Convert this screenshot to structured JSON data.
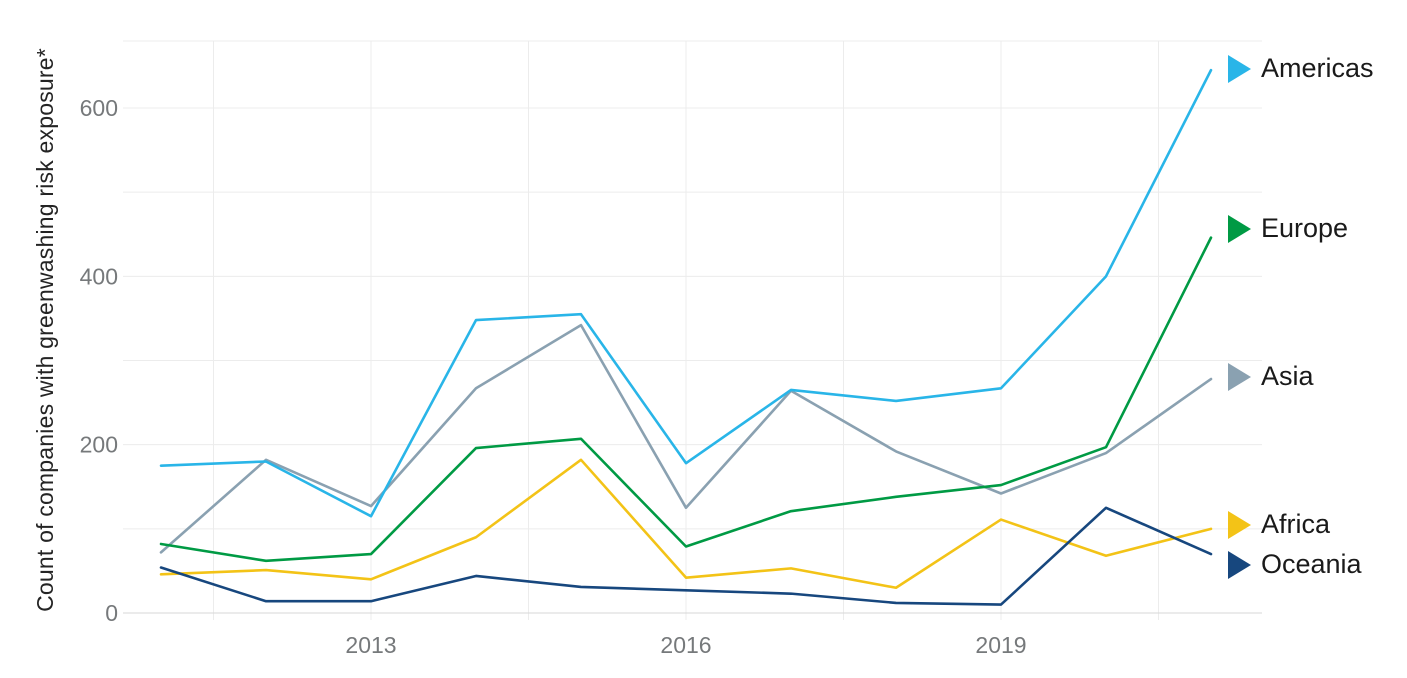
{
  "chart_data": {
    "type": "line",
    "title": "",
    "ylabel": "Count of companies with greenwashing risk exposure*",
    "xlabel": "",
    "x": [
      2011,
      2012,
      2013,
      2014,
      2015,
      2016,
      2017,
      2018,
      2019,
      2020,
      2021
    ],
    "series": [
      {
        "name": "Americas",
        "color": "#29b5e8",
        "values": [
          175,
          180,
          115,
          348,
          355,
          178,
          265,
          252,
          267,
          400,
          645
        ]
      },
      {
        "name": "Europe",
        "color": "#009a44",
        "values": [
          82,
          62,
          70,
          196,
          207,
          79,
          121,
          138,
          152,
          197,
          446
        ]
      },
      {
        "name": "Asia",
        "color": "#8aa1b1",
        "values": [
          72,
          182,
          127,
          267,
          342,
          125,
          264,
          192,
          142,
          190,
          278
        ]
      },
      {
        "name": "Africa",
        "color": "#f3c317",
        "values": [
          46,
          51,
          40,
          90,
          182,
          42,
          53,
          30,
          111,
          68,
          100
        ]
      },
      {
        "name": "Oceania",
        "color": "#17477e",
        "values": [
          54,
          14,
          14,
          44,
          31,
          27,
          23,
          12,
          10,
          125,
          70
        ]
      }
    ],
    "xtick_years": [
      2013,
      2016,
      2019
    ],
    "xtick_labels": [
      "2013",
      "2016",
      "2019"
    ],
    "ytick_values": [
      0,
      200,
      400,
      600
    ],
    "ytick_labels": [
      "0",
      "200",
      "400",
      "600"
    ],
    "ygrid_values": [
      0,
      100,
      200,
      300,
      400,
      500,
      600
    ],
    "xgrid_years": [
      2011.5,
      2013,
      2014.5,
      2016,
      2017.5,
      2019,
      2020.5
    ],
    "ylim": [
      0,
      680
    ],
    "grid": true,
    "legend_position": "right",
    "colors": {
      "grid": "#ececec",
      "axis_line": "#d7d7d7",
      "tick_label": "#76797b",
      "text": "#1a1a1a"
    }
  }
}
